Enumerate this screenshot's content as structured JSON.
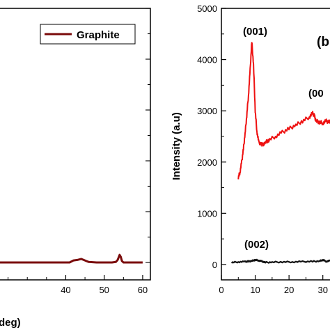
{
  "chart_data": [
    {
      "panel": "left",
      "type": "line",
      "xlabel": "deg)",
      "ylabel": "",
      "xlim": [
        22,
        62
      ],
      "ylim": [
        0,
        5000
      ],
      "x_ticks": [
        40,
        50,
        60
      ],
      "y_ticks": [],
      "legend_position": "top-right",
      "series": [
        {
          "name": "Graphite",
          "color": "#7a0a0a",
          "x": [
            22,
            30,
            38,
            41,
            42,
            43,
            44,
            45,
            46,
            48,
            50,
            52,
            53,
            53.5,
            54,
            54.3,
            54.6,
            55,
            56,
            58,
            60
          ],
          "y": [
            0,
            0,
            0,
            0,
            40,
            50,
            70,
            40,
            10,
            0,
            0,
            0,
            10,
            50,
            150,
            110,
            30,
            0,
            0,
            0,
            0
          ]
        }
      ]
    },
    {
      "panel": "right",
      "type": "line",
      "xlabel": "",
      "ylabel": "Intensity (a.u)",
      "panel_label": "(b",
      "xlim": [
        0,
        35
      ],
      "ylim": [
        -300,
        5000
      ],
      "x_ticks": [
        0,
        10,
        20,
        30
      ],
      "y_ticks": [
        0,
        1000,
        2000,
        3000,
        4000,
        5000
      ],
      "annotations": [
        "(001)",
        "(00",
        "(002)"
      ],
      "series": [
        {
          "color": "#ee1111",
          "x": [
            5,
            5.5,
            6,
            6.5,
            7,
            7.5,
            8,
            8.5,
            9,
            9.5,
            10,
            10.5,
            11,
            12,
            13,
            14,
            16,
            18,
            20,
            22,
            24,
            26,
            27,
            27.5,
            28,
            29,
            30,
            31,
            32,
            33,
            34
          ],
          "y": [
            1700,
            1800,
            2000,
            2250,
            2550,
            2900,
            3300,
            3800,
            4350,
            3900,
            3000,
            2600,
            2400,
            2330,
            2380,
            2430,
            2500,
            2580,
            2650,
            2720,
            2800,
            2880,
            2950,
            2900,
            2800,
            2780,
            2760,
            2800,
            2780,
            2790,
            2800
          ]
        },
        {
          "color": "#111111",
          "x": [
            3,
            5,
            7,
            8,
            9,
            10,
            11,
            12,
            13,
            15,
            18,
            21,
            24,
            27,
            29,
            30,
            31,
            32,
            34
          ],
          "y": [
            40,
            50,
            55,
            60,
            70,
            90,
            80,
            60,
            40,
            45,
            50,
            50,
            55,
            60,
            65,
            90,
            60,
            70,
            75
          ]
        }
      ]
    }
  ]
}
